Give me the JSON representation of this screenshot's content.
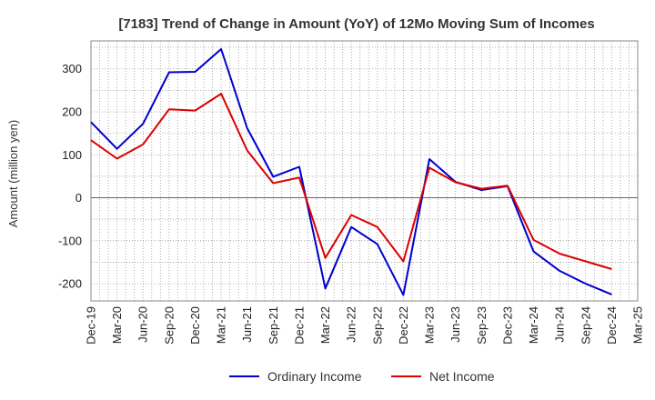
{
  "chart_data": {
    "type": "line",
    "title": "[7183]  Trend of Change in Amount (YoY) of 12Mo Moving Sum of Incomes",
    "ylabel": "Amount (million yen)",
    "xlabel": "",
    "categories": [
      "Dec-19",
      "Mar-20",
      "Jun-20",
      "Sep-20",
      "Dec-20",
      "Mar-21",
      "Jun-21",
      "Sep-21",
      "Dec-21",
      "Mar-22",
      "Jun-22",
      "Sep-22",
      "Dec-22",
      "Mar-23",
      "Jun-23",
      "Sep-23",
      "Dec-23",
      "Mar-24",
      "Jun-24",
      "Sep-24",
      "Dec-24",
      "Mar-25"
    ],
    "yticks": [
      300,
      200,
      100,
      0,
      -100,
      -200
    ],
    "ylim": [
      -240,
      365
    ],
    "grid": true,
    "legend_position": "bottom",
    "series": [
      {
        "name": "Ordinary Income",
        "color": "#0000cc",
        "values": [
          176,
          114,
          172,
          292,
          293,
          346,
          162,
          49,
          72,
          -211,
          -68,
          -108,
          -226,
          90,
          37,
          18,
          27,
          -125,
          -170,
          -200,
          -225,
          null
        ]
      },
      {
        "name": "Net Income",
        "color": "#dd0000",
        "values": [
          134,
          91,
          124,
          206,
          203,
          242,
          110,
          34,
          47,
          -140,
          -40,
          -68,
          -148,
          70,
          36,
          21,
          28,
          -98,
          -130,
          -148,
          -166,
          null
        ]
      }
    ]
  }
}
